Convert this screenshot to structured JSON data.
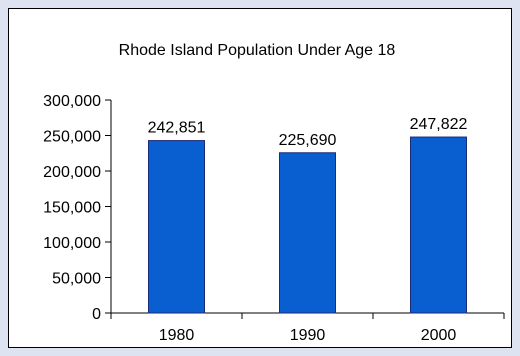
{
  "chart_data": {
    "type": "bar",
    "title": "Rhode Island Population Under Age 18",
    "categories": [
      "1980",
      "1990",
      "2000"
    ],
    "values": [
      242851,
      225690,
      247822
    ],
    "data_labels": [
      "242,851",
      "225,690",
      "247,822"
    ],
    "ylim": [
      0,
      300000
    ],
    "yticks": [
      0,
      50000,
      100000,
      150000,
      200000,
      250000,
      300000
    ],
    "ytick_labels": [
      "0",
      "50,000",
      "100,000",
      "150,000",
      "200,000",
      "250,000",
      "300,000"
    ],
    "xlabel": "",
    "ylabel": "",
    "grid": false,
    "legend": "none",
    "bar_color": "#0a5fd0"
  }
}
